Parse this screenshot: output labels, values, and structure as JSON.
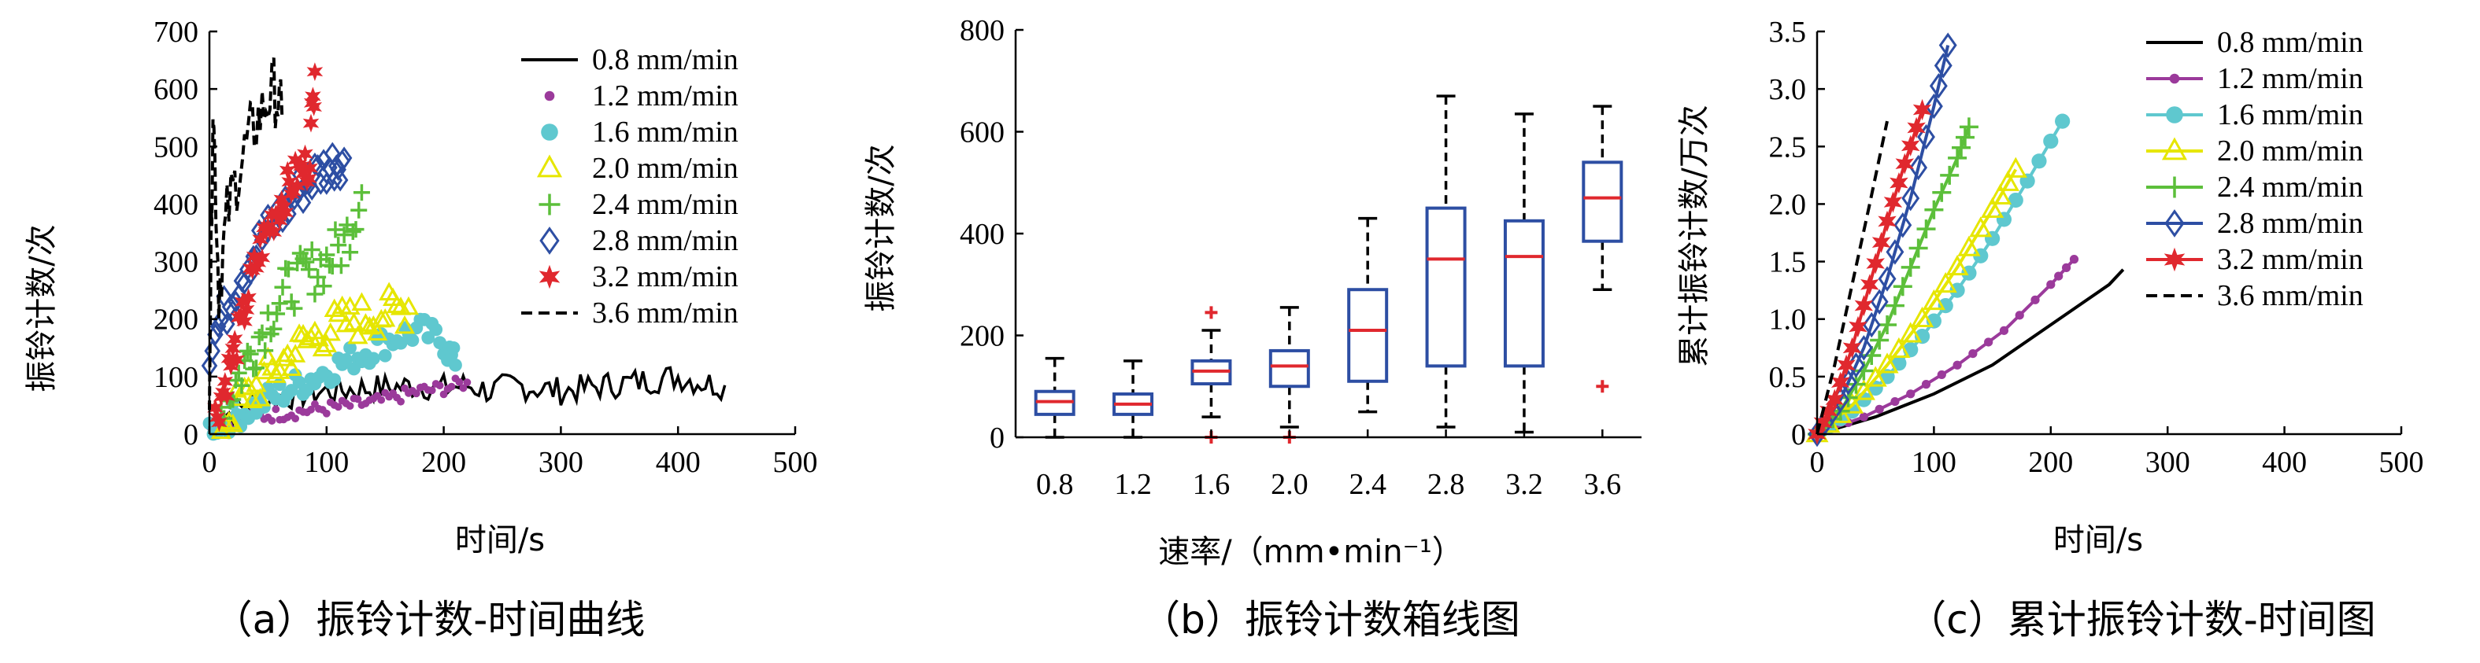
{
  "chart_data": [
    {
      "type": "scatter",
      "caption": "（a）振铃计数-时间曲线",
      "xlabel": "时间/s",
      "ylabel": "振铃计数/次",
      "xlim": [
        0,
        500
      ],
      "ylim": [
        0,
        700
      ],
      "xticks": [
        0,
        100,
        200,
        300,
        400,
        500
      ],
      "yticks": [
        0,
        100,
        200,
        300,
        400,
        500,
        600,
        700
      ],
      "legend_position": "top-right",
      "series": [
        {
          "name": "0.8 mm/min",
          "color": "#000000",
          "marker": "line",
          "x": [
            0,
            20,
            40,
            60,
            80,
            100,
            120,
            140,
            160,
            180,
            200,
            220,
            240,
            260,
            280,
            300,
            320,
            340,
            360,
            380,
            400,
            420,
            440
          ],
          "y": [
            20,
            40,
            55,
            65,
            70,
            75,
            78,
            80,
            82,
            85,
            80,
            85,
            75,
            85,
            80,
            75,
            80,
            85,
            90,
            95,
            100,
            90,
            85
          ]
        },
        {
          "name": "1.2 mm/min",
          "color": "#9b3a9b",
          "marker": "dot",
          "x": [
            0,
            20,
            40,
            60,
            80,
            100,
            120,
            140,
            160,
            180,
            200,
            220
          ],
          "y": [
            10,
            20,
            30,
            35,
            40,
            45,
            50,
            55,
            65,
            75,
            80,
            90
          ]
        },
        {
          "name": "1.6 mm/min",
          "color": "#5fc8cf",
          "marker": "circle",
          "x": [
            0,
            20,
            40,
            60,
            80,
            100,
            120,
            140,
            160,
            180,
            200,
            210
          ],
          "y": [
            10,
            30,
            50,
            70,
            90,
            110,
            130,
            150,
            170,
            180,
            160,
            120
          ]
        },
        {
          "name": "2.0 mm/min",
          "color": "#e6e600",
          "marker": "triangle",
          "x": [
            10,
            30,
            50,
            70,
            90,
            110,
            130,
            150,
            170
          ],
          "y": [
            20,
            60,
            100,
            140,
            170,
            190,
            200,
            210,
            220
          ]
        },
        {
          "name": "2.4 mm/min",
          "color": "#5cbf3a",
          "marker": "plus",
          "x": [
            10,
            25,
            40,
            55,
            70,
            85,
            100,
            115,
            130
          ],
          "y": [
            50,
            100,
            160,
            220,
            260,
            280,
            300,
            330,
            420
          ]
        },
        {
          "name": "2.8 mm/min",
          "color": "#2d4ea3",
          "marker": "diamond",
          "x": [
            0,
            15,
            30,
            45,
            60,
            75,
            90,
            105,
            115
          ],
          "y": [
            150,
            220,
            290,
            340,
            380,
            420,
            450,
            470,
            480
          ]
        },
        {
          "name": "3.2 mm/min",
          "color": "#e0282e",
          "marker": "star",
          "x": [
            5,
            15,
            25,
            35,
            45,
            55,
            65,
            75,
            85,
            90
          ],
          "y": [
            30,
            100,
            170,
            260,
            330,
            380,
            420,
            450,
            470,
            630
          ]
        },
        {
          "name": "3.6 mm/min",
          "color": "#000000",
          "marker": "dash",
          "x": [
            0,
            3,
            8,
            15,
            25,
            35,
            45,
            55,
            62
          ],
          "y": [
            100,
            580,
            250,
            380,
            460,
            520,
            560,
            600,
            550
          ]
        }
      ]
    },
    {
      "type": "box",
      "caption": "（b）振铃计数箱线图",
      "xlabel": "速率/（mm•min⁻¹）",
      "ylabel": "振铃计数/次",
      "ylim": [
        0,
        800
      ],
      "yticks": [
        0,
        200,
        400,
        600,
        800
      ],
      "categories": [
        "0.8",
        "1.2",
        "1.6",
        "2.0",
        "2.4",
        "2.8",
        "3.2",
        "3.6"
      ],
      "boxes": [
        {
          "min": 0,
          "q1": 45,
          "median": 70,
          "q3": 90,
          "max": 155,
          "outliers": []
        },
        {
          "min": 0,
          "q1": 45,
          "median": 65,
          "q3": 85,
          "max": 150,
          "outliers": []
        },
        {
          "min": 40,
          "q1": 105,
          "median": 130,
          "q3": 150,
          "max": 210,
          "outliers": [
            0,
            245
          ]
        },
        {
          "min": 20,
          "q1": 100,
          "median": 140,
          "q3": 170,
          "max": 255,
          "outliers": [
            0
          ]
        },
        {
          "min": 50,
          "q1": 110,
          "median": 210,
          "q3": 290,
          "max": 430,
          "outliers": []
        },
        {
          "min": 20,
          "q1": 140,
          "median": 350,
          "q3": 450,
          "max": 670,
          "outliers": []
        },
        {
          "min": 10,
          "q1": 140,
          "median": 355,
          "q3": 425,
          "max": 635,
          "outliers": []
        },
        {
          "min": 290,
          "q1": 385,
          "median": 470,
          "q3": 540,
          "max": 650,
          "outliers": [
            100
          ]
        }
      ]
    },
    {
      "type": "line",
      "caption": "（c）累计振铃计数-时间图",
      "xlabel": "时间/s",
      "ylabel": "累计振铃计数/万次",
      "xlim": [
        0,
        500
      ],
      "ylim": [
        0,
        3.5
      ],
      "xticks": [
        0,
        100,
        200,
        300,
        400,
        500
      ],
      "yticks": [
        0,
        0.5,
        1.0,
        1.5,
        2.0,
        2.5,
        3.0,
        3.5
      ],
      "ytick_labels": [
        "0",
        "0.5",
        "1.0",
        "1.5",
        "2.0",
        "2.5",
        "3.0",
        "3.5"
      ],
      "legend_position": "top-right",
      "series": [
        {
          "name": "0.8 mm/min",
          "color": "#000000",
          "marker": "none",
          "x": [
            0,
            50,
            100,
            150,
            200,
            250,
            262
          ],
          "y": [
            0,
            0.15,
            0.35,
            0.6,
            0.95,
            1.3,
            1.43
          ]
        },
        {
          "name": "1.2 mm/min",
          "color": "#9b3a9b",
          "marker": "dot",
          "x": [
            0,
            40,
            80,
            120,
            160,
            200,
            220
          ],
          "y": [
            0,
            0.15,
            0.35,
            0.6,
            0.9,
            1.3,
            1.52
          ]
        },
        {
          "name": "1.6 mm/min",
          "color": "#5fc8cf",
          "marker": "circle",
          "x": [
            0,
            30,
            60,
            90,
            120,
            150,
            180,
            210
          ],
          "y": [
            0,
            0.2,
            0.5,
            0.85,
            1.25,
            1.7,
            2.2,
            2.72
          ]
        },
        {
          "name": "2.0 mm/min",
          "color": "#e6e600",
          "marker": "triangle",
          "x": [
            0,
            30,
            60,
            90,
            120,
            150,
            170
          ],
          "y": [
            0,
            0.25,
            0.6,
            1.0,
            1.45,
            1.95,
            2.3
          ]
        },
        {
          "name": "2.4 mm/min",
          "color": "#5cbf3a",
          "marker": "plus",
          "x": [
            0,
            20,
            40,
            60,
            80,
            100,
            120,
            130
          ],
          "y": [
            0,
            0.2,
            0.55,
            0.95,
            1.45,
            1.95,
            2.4,
            2.67
          ]
        },
        {
          "name": "2.8 mm/min",
          "color": "#2d4ea3",
          "marker": "diamond",
          "x": [
            0,
            20,
            40,
            60,
            80,
            100,
            112
          ],
          "y": [
            0,
            0.3,
            0.75,
            1.35,
            2.05,
            2.85,
            3.38
          ]
        },
        {
          "name": "3.2 mm/min",
          "color": "#e0282e",
          "marker": "star",
          "x": [
            0,
            15,
            30,
            45,
            60,
            75,
            90
          ],
          "y": [
            0,
            0.3,
            0.75,
            1.3,
            1.85,
            2.35,
            2.82
          ]
        },
        {
          "name": "3.6 mm/min",
          "color": "#000000",
          "marker": "dash",
          "x": [
            0,
            15,
            30,
            45,
            60
          ],
          "y": [
            0,
            0.6,
            1.3,
            2.0,
            2.72
          ]
        }
      ]
    }
  ]
}
